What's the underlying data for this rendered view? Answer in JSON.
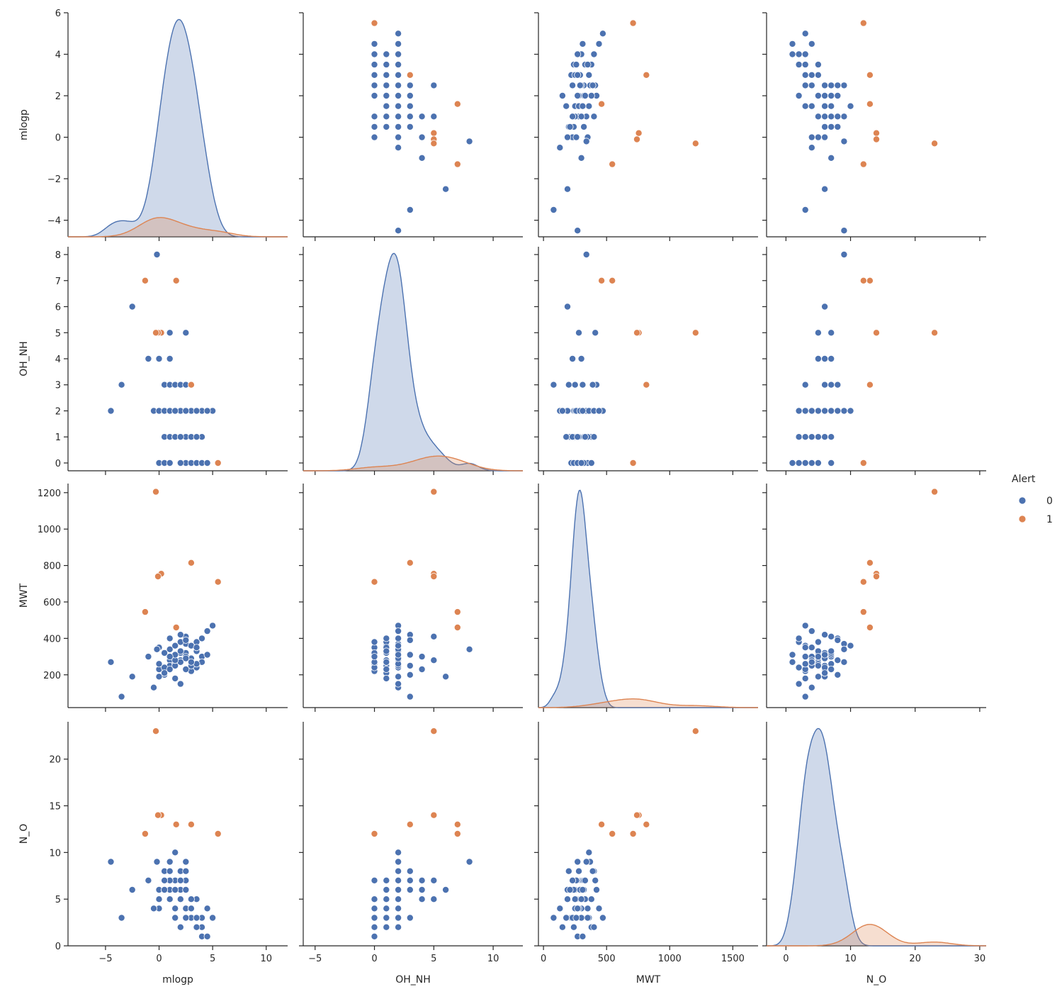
{
  "chart_data": {
    "type": "scatter",
    "subtype": "pairplot",
    "variables": [
      "mlogp",
      "OH_NH",
      "MWT",
      "N_O"
    ],
    "hue": "Alert",
    "colors": {
      "0": "#4c72b0",
      "1": "#dd8452"
    },
    "legend": {
      "title": "Alert",
      "entries": [
        "0",
        "1"
      ],
      "placement": "right"
    },
    "axes": {
      "mlogp": {
        "label": "mlogp",
        "range": [
          -8.5,
          12
        ],
        "ticks": [
          -5,
          0,
          5,
          10
        ],
        "tick_labels": [
          "−5",
          "0",
          "5",
          "10"
        ],
        "row_range": [
          -4.8,
          6.0
        ],
        "row_ticks": [
          -4,
          -2,
          0,
          2,
          4,
          6
        ],
        "row_tick_labels": [
          "−4",
          "−2",
          "0",
          "2",
          "4",
          "6"
        ]
      },
      "OH_NH": {
        "label": "OH_NH",
        "range": [
          -6,
          12.5
        ],
        "ticks": [
          -5,
          0,
          5,
          10
        ],
        "tick_labels": [
          "−5",
          "0",
          "5",
          "10"
        ],
        "row_range": [
          -0.3,
          8.3
        ],
        "row_ticks": [
          0,
          1,
          2,
          3,
          4,
          5,
          6,
          7,
          8
        ],
        "row_tick_labels": [
          "0",
          "1",
          "2",
          "3",
          "4",
          "5",
          "6",
          "7",
          "8"
        ]
      },
      "MWT": {
        "label": "MWT",
        "range": [
          -40,
          1700
        ],
        "ticks": [
          0,
          500,
          1000,
          1500
        ],
        "tick_labels": [
          "0",
          "500",
          "1000",
          "1500"
        ],
        "row_range": [
          20,
          1250
        ],
        "row_ticks": [
          200,
          400,
          600,
          800,
          1000,
          1200
        ],
        "row_tick_labels": [
          "200",
          "400",
          "600",
          "800",
          "1000",
          "1200"
        ]
      },
      "N_O": {
        "label": "N_O",
        "range": [
          -3,
          31
        ],
        "ticks": [
          0,
          10,
          20,
          30
        ],
        "tick_labels": [
          "0",
          "10",
          "20",
          "30"
        ],
        "row_range": [
          0,
          24
        ],
        "row_ticks": [
          0,
          5,
          10,
          15,
          20
        ],
        "row_tick_labels": [
          "0",
          "5",
          "10",
          "15",
          "20"
        ]
      }
    },
    "series": [
      {
        "name": "0",
        "points": [
          [
            0.0,
            0,
            350,
            4
          ],
          [
            -0.2,
            8,
            340,
            9
          ],
          [
            -2.5,
            6,
            190,
            6
          ],
          [
            -4.5,
            2,
            270,
            9
          ],
          [
            -3.5,
            3,
            80,
            3
          ],
          [
            -1.0,
            4,
            300,
            7
          ],
          [
            0.0,
            4,
            230,
            6
          ],
          [
            1.0,
            4,
            300,
            5
          ],
          [
            1.0,
            5,
            280,
            5
          ],
          [
            2.5,
            5,
            410,
            7
          ],
          [
            0.5,
            3,
            200,
            8
          ],
          [
            1.0,
            3,
            250,
            6
          ],
          [
            1.5,
            3,
            310,
            7
          ],
          [
            2.0,
            1,
            320,
            5
          ],
          [
            -0.5,
            2,
            130,
            4
          ],
          [
            0.0,
            2,
            190,
            5
          ],
          [
            0.5,
            2,
            240,
            6
          ],
          [
            1.5,
            2,
            260,
            7
          ],
          [
            2.0,
            2,
            280,
            8
          ],
          [
            2.5,
            2,
            370,
            9
          ],
          [
            3.0,
            2,
            290,
            4
          ],
          [
            3.5,
            2,
            330,
            5
          ],
          [
            4.0,
            2,
            300,
            3
          ],
          [
            5.0,
            2,
            470,
            3
          ],
          [
            0.5,
            1,
            210,
            6
          ],
          [
            1.0,
            1,
            230,
            7
          ],
          [
            1.5,
            1,
            250,
            4
          ],
          [
            2.0,
            1,
            270,
            5
          ],
          [
            2.5,
            1,
            320,
            6
          ],
          [
            3.0,
            1,
            360,
            3
          ],
          [
            3.5,
            1,
            380,
            2
          ],
          [
            4.0,
            1,
            400,
            2
          ],
          [
            0.0,
            0,
            260,
            5
          ],
          [
            2.5,
            0,
            300,
            4
          ],
          [
            3.0,
            0,
            220,
            3
          ],
          [
            3.5,
            0,
            240,
            2
          ],
          [
            4.0,
            0,
            270,
            1
          ],
          [
            4.5,
            0,
            310,
            1
          ],
          [
            1.5,
            1,
            180,
            3
          ],
          [
            1.0,
            2,
            340,
            9
          ],
          [
            1.5,
            2,
            360,
            10
          ],
          [
            2.0,
            2,
            150,
            2
          ],
          [
            2.5,
            1,
            230,
            3
          ],
          [
            3.0,
            2,
            250,
            5
          ],
          [
            2.0,
            3,
            420,
            6
          ],
          [
            1.5,
            1,
            280,
            4
          ],
          [
            3.5,
            2,
            260,
            3
          ],
          [
            0.5,
            0,
            320,
            7
          ],
          [
            1.0,
            2,
            400,
            8
          ],
          [
            2.5,
            2,
            290,
            6
          ],
          [
            3.0,
            1,
            270,
            4
          ],
          [
            2.0,
            0,
            380,
            5
          ],
          [
            4.5,
            2,
            440,
            4
          ],
          [
            1.5,
            2,
            310,
            6
          ],
          [
            3.5,
            1,
            350,
            3
          ],
          [
            2.0,
            1,
            330,
            7
          ],
          [
            1.0,
            0,
            300,
            5
          ],
          [
            2.5,
            3,
            390,
            8
          ]
        ]
      },
      {
        "name": "1",
        "points": [
          [
            5.5,
            0,
            710,
            12
          ],
          [
            3.0,
            3,
            815,
            13
          ],
          [
            1.6,
            7,
            460,
            13
          ],
          [
            0.2,
            5,
            755,
            14
          ],
          [
            -0.1,
            5,
            740,
            14
          ],
          [
            -0.3,
            5,
            1205,
            23
          ],
          [
            -1.3,
            7,
            545,
            12
          ]
        ]
      }
    ]
  }
}
